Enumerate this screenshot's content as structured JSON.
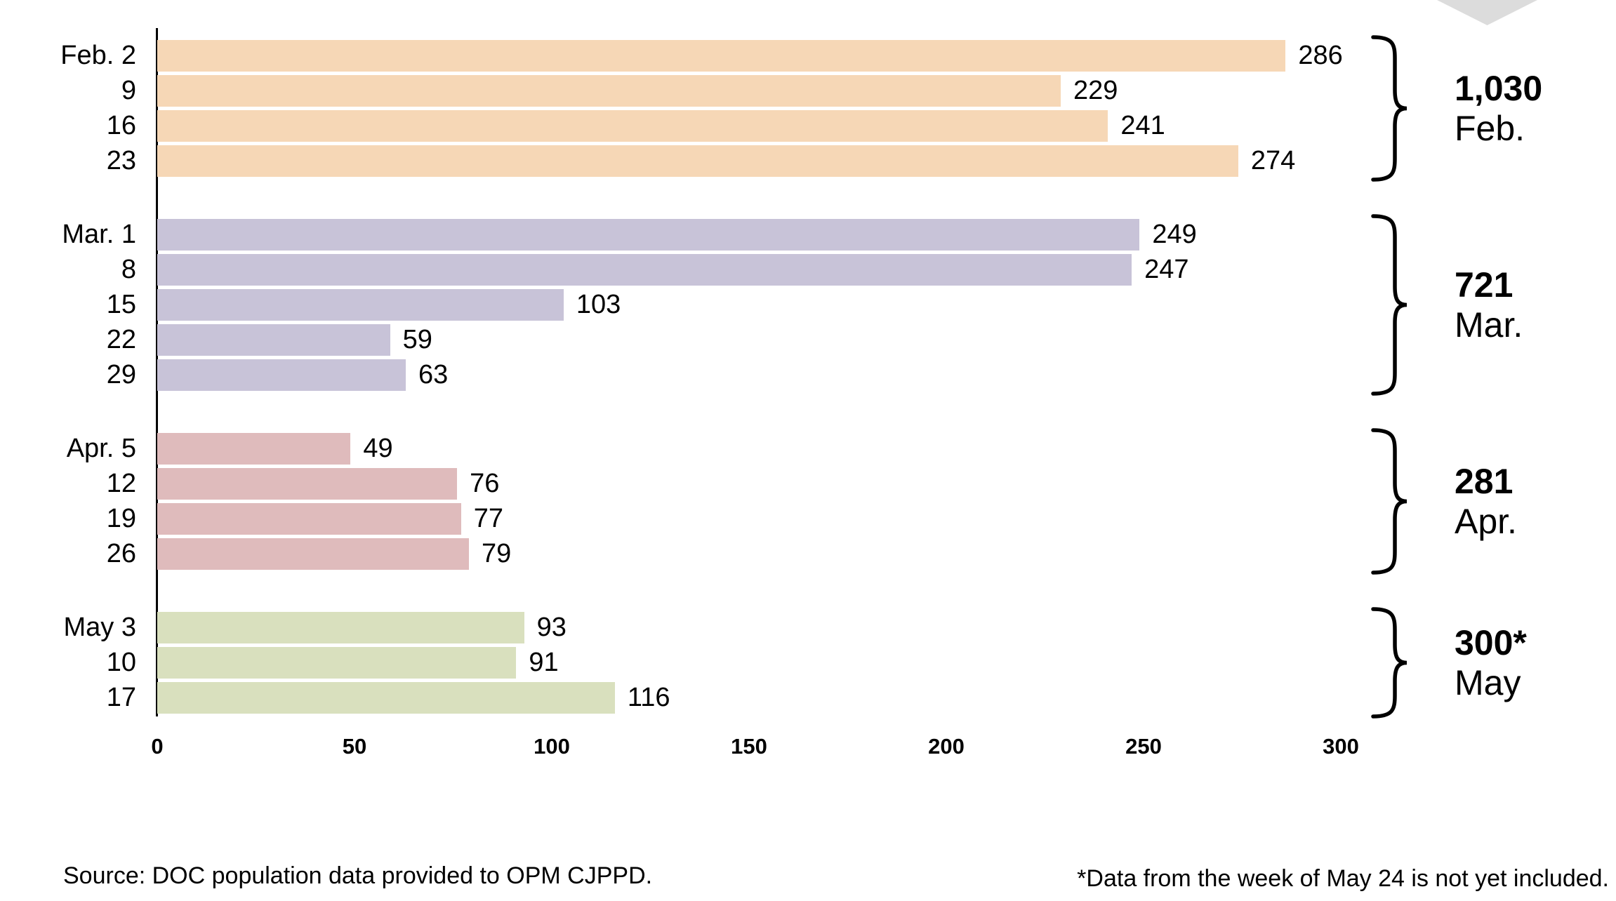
{
  "chart_data": {
    "type": "bar",
    "orientation": "horizontal",
    "title": "",
    "xlabel": "",
    "ylabel": "",
    "grid": false,
    "x_axis": {
      "min": 0,
      "max": 300,
      "ticks": [
        "0",
        "50",
        "100",
        "150",
        "200",
        "250",
        "300"
      ]
    },
    "groups": [
      {
        "month_label": "Feb.",
        "total": "1,030",
        "bar_color": "#f6d7b6",
        "bars": [
          {
            "label": "Feb. 2",
            "value": 286
          },
          {
            "label": "9",
            "value": 229
          },
          {
            "label": "16",
            "value": 241
          },
          {
            "label": "23",
            "value": 274
          }
        ]
      },
      {
        "month_label": "Mar.",
        "total": "721",
        "bar_color": "#c8c3d8",
        "bars": [
          {
            "label": "Mar. 1",
            "value": 249
          },
          {
            "label": "8",
            "value": 247
          },
          {
            "label": "15",
            "value": 103
          },
          {
            "label": "22",
            "value": 59
          },
          {
            "label": "29",
            "value": 63
          }
        ]
      },
      {
        "month_label": "Apr.",
        "total": "281",
        "bar_color": "#dfbbbc",
        "bars": [
          {
            "label": "Apr. 5",
            "value": 49
          },
          {
            "label": "12",
            "value": 76
          },
          {
            "label": "19",
            "value": 77
          },
          {
            "label": "26",
            "value": 79
          }
        ]
      },
      {
        "month_label": "May",
        "total": "300*",
        "bar_color": "#d9e0be",
        "bars": [
          {
            "label": "May 3",
            "value": 93
          },
          {
            "label": "10",
            "value": 91
          },
          {
            "label": "17",
            "value": 116
          }
        ]
      }
    ]
  },
  "notes": {
    "source": "Source: DOC population data provided to OPM CJPPD.",
    "asterisk": "*Data from the week of May 24 is not yet included."
  },
  "decor": {
    "chevron_color": "#dcdcdc",
    "axis_color": "#000000"
  }
}
